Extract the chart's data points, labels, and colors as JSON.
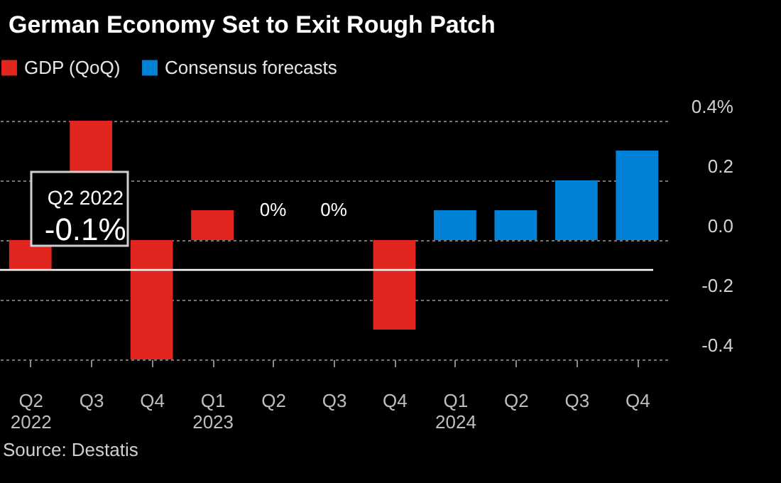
{
  "chart_data": {
    "type": "bar",
    "title": "German Economy Set to Exit Rough Patch",
    "categories": [
      "Q2 2022",
      "Q3",
      "Q4",
      "Q1 2023",
      "Q2",
      "Q3",
      "Q4",
      "Q1 2024",
      "Q2",
      "Q3",
      "Q4"
    ],
    "series": [
      {
        "name": "GDP (QoQ)",
        "color": "#e0261e",
        "values": [
          -0.1,
          0.4,
          -0.4,
          0.1,
          0,
          0,
          -0.3,
          null,
          null,
          null,
          null
        ],
        "value_labels": [
          null,
          null,
          null,
          null,
          "0%",
          "0%",
          null,
          null,
          null,
          null,
          null
        ]
      },
      {
        "name": "Consensus forecasts",
        "color": "#0083d6",
        "values": [
          null,
          null,
          null,
          null,
          null,
          null,
          null,
          0.1,
          0.1,
          0.2,
          0.3
        ]
      }
    ],
    "ylim": [
      -0.4,
      0.4
    ],
    "yticks": [
      {
        "value": 0.4,
        "label": "0.4%"
      },
      0.2,
      {
        "value": 0,
        "label": "0.0"
      },
      -0.2,
      -0.4
    ],
    "grid": true,
    "legend": "top left",
    "ref_lines": [
      {
        "axis": "y",
        "value": -0.1,
        "color": "#ffffff"
      }
    ],
    "annotations": [
      {
        "text": "Q2 2022 -0.1%",
        "x": "Q2 2022",
        "y": -0.1
      },
      "Source: Destatis"
    ]
  }
}
